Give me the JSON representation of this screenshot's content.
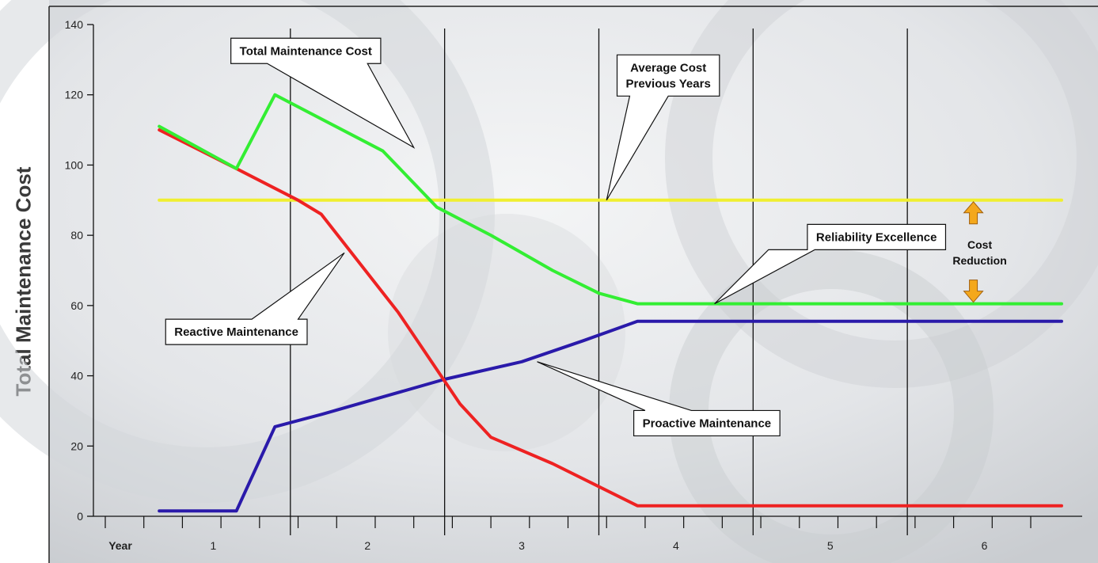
{
  "chart_data": {
    "type": "line",
    "ylabel": "Total Maintenance Cost",
    "xlabel": "Year",
    "ylim": [
      0,
      140
    ],
    "yticks": [
      0,
      20,
      40,
      60,
      80,
      100,
      120,
      140
    ],
    "xlim": [
      0.3,
      6.5
    ],
    "xcategories": [
      {
        "label": "1",
        "x": 1
      },
      {
        "label": "2",
        "x": 2
      },
      {
        "label": "3",
        "x": 3
      },
      {
        "label": "4",
        "x": 4
      },
      {
        "label": "5",
        "x": 5
      },
      {
        "label": "6",
        "x": 6
      }
    ],
    "year_dividers": [
      1.5,
      2.5,
      3.5,
      4.5,
      5.5
    ],
    "series": [
      {
        "name": "Total Maintenance Cost",
        "color": "#33ee33",
        "points": [
          [
            0.65,
            111
          ],
          [
            1.15,
            99
          ],
          [
            1.4,
            120
          ],
          [
            2.1,
            104
          ],
          [
            2.45,
            88
          ],
          [
            2.8,
            80
          ],
          [
            3.2,
            70
          ],
          [
            3.5,
            63.5
          ],
          [
            3.75,
            60.5
          ],
          [
            6.5,
            60.5
          ]
        ]
      },
      {
        "name": "Reactive Maintenance",
        "color": "#ee2222",
        "points": [
          [
            0.65,
            110
          ],
          [
            1.15,
            99
          ],
          [
            1.55,
            90
          ],
          [
            1.7,
            86
          ],
          [
            2.2,
            58
          ],
          [
            2.6,
            32
          ],
          [
            2.8,
            22.5
          ],
          [
            3.2,
            15
          ],
          [
            3.75,
            3
          ],
          [
            6.5,
            3
          ]
        ]
      },
      {
        "name": "Proactive Maintenance",
        "color": "#2a1aaa",
        "points": [
          [
            0.65,
            1.5
          ],
          [
            1.15,
            1.5
          ],
          [
            1.4,
            25.5
          ],
          [
            1.7,
            29
          ],
          [
            2.1,
            34
          ],
          [
            2.5,
            39
          ],
          [
            3.0,
            44
          ],
          [
            3.4,
            50
          ],
          [
            3.75,
            55.5
          ],
          [
            6.5,
            55.5
          ]
        ]
      },
      {
        "name": "Average Cost Previous Years",
        "color": "#f0ef30",
        "points": [
          [
            0.65,
            90
          ],
          [
            6.5,
            90
          ]
        ]
      }
    ],
    "annotations": [
      {
        "id": "total",
        "lines": [
          "Total Maintenance Cost"
        ],
        "box": [
          1.6,
          132.5
        ],
        "target": [
          2.3,
          105
        ],
        "base": [
          1.35,
          2.0
        ]
      },
      {
        "id": "average",
        "lines": [
          "Average Cost",
          "Previous Years"
        ],
        "box": [
          3.95,
          125.5
        ],
        "target": [
          3.55,
          90
        ],
        "base": [
          3.7,
          3.95
        ]
      },
      {
        "id": "reactive",
        "lines": [
          "Reactive Maintenance"
        ],
        "box": [
          1.15,
          52.5
        ],
        "target": [
          1.85,
          75
        ],
        "base": [
          1.25,
          1.55
        ]
      },
      {
        "id": "proactive",
        "lines": [
          "Proactive Maintenance"
        ],
        "box": [
          4.2,
          26.5
        ],
        "target": [
          3.1,
          44
        ],
        "base": [
          3.8,
          4.1
        ]
      },
      {
        "id": "reliability",
        "lines": [
          "Reliability Excellence"
        ],
        "box": [
          5.3,
          79.5
        ],
        "target": [
          4.25,
          60.5
        ],
        "base": [
          4.6,
          4.9
        ]
      }
    ],
    "cost_reduction": {
      "lines": [
        "Cost",
        "Reduction"
      ],
      "x": 6.0,
      "from": 90,
      "to": 60.5
    }
  }
}
